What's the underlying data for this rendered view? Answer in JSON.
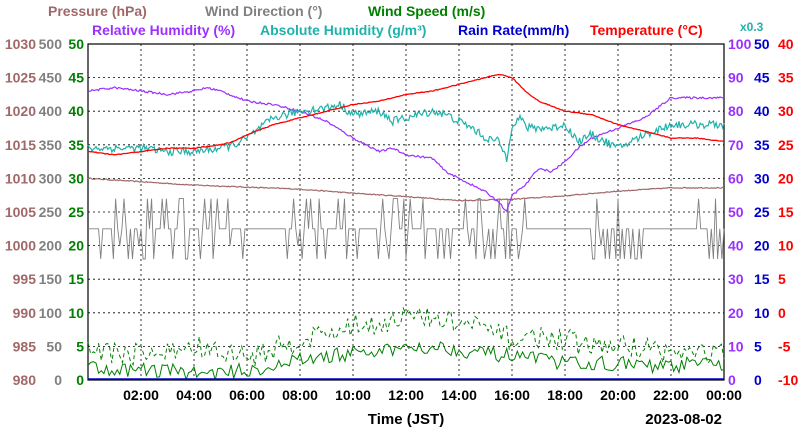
{
  "chart_data": {
    "type": "line",
    "date": "2023-08-02",
    "xlabel": "Time (JST)",
    "x_ticks": [
      "02:00",
      "04:00",
      "06:00",
      "08:00",
      "10:00",
      "12:00",
      "14:00",
      "16:00",
      "18:00",
      "20:00",
      "22:00",
      "00:00"
    ],
    "x_range_hours": [
      0,
      24
    ],
    "grid": true,
    "legend": [
      {
        "id": "pressure",
        "label": "Pressure (hPa)",
        "color": "#a06868"
      },
      {
        "id": "wind_dir",
        "label": "Wind Direction (°)",
        "color": "#808080"
      },
      {
        "id": "wind_speed",
        "label": "Wind Speed (m/s)",
        "color": "#008000"
      },
      {
        "id": "rh",
        "label": "Relative Humidity (%)",
        "color": "#9b30ff"
      },
      {
        "id": "abs_hum",
        "label": "Absolute Humidity (g/m³)",
        "color": "#20b2aa"
      },
      {
        "id": "rain",
        "label": "Rain Rate(mm/h)",
        "color": "#0000cd"
      },
      {
        "id": "temp",
        "label": "Temperature (°C)",
        "color": "#ff0000"
      }
    ],
    "abs_hum_scale_note": "x0.3",
    "axes": {
      "pressure": {
        "range": [
          980,
          1030
        ],
        "ticks": [
          "1030",
          "1025",
          "1020",
          "1015",
          "1010",
          "1005",
          "1000",
          "995",
          "990",
          "985",
          "980"
        ]
      },
      "wind_dir": {
        "range": [
          0,
          500
        ],
        "ticks": [
          "500",
          "450",
          "400",
          "350",
          "300",
          "250",
          "200",
          "150",
          "100",
          "50",
          "0"
        ]
      },
      "wind_speed": {
        "range": [
          0,
          50
        ],
        "ticks": [
          "50",
          "45",
          "40",
          "35",
          "30",
          "25",
          "20",
          "15",
          "10",
          "5",
          "0"
        ]
      },
      "rh": {
        "range": [
          0,
          100
        ],
        "ticks": [
          "100",
          "90",
          "80",
          "70",
          "60",
          "50",
          "40",
          "30",
          "20",
          "10",
          "0"
        ]
      },
      "rain": {
        "range": [
          0,
          50
        ],
        "ticks": [
          "50",
          "45",
          "40",
          "35",
          "30",
          "25",
          "20",
          "15",
          "10",
          "5",
          "0"
        ]
      },
      "temp": {
        "range": [
          -10,
          40
        ],
        "ticks": [
          "40",
          "35",
          "30",
          "25",
          "20",
          "15",
          "10",
          "5",
          "0",
          "-5",
          "-10"
        ]
      }
    },
    "series": {
      "temp": {
        "x": [
          0,
          1,
          2,
          3,
          4,
          5,
          5.5,
          6,
          7,
          8,
          9,
          10,
          11,
          12,
          13,
          14,
          15,
          15.5,
          16,
          16.5,
          17,
          18,
          19,
          20,
          21,
          22,
          23,
          24
        ],
        "y": [
          24,
          23.5,
          24,
          24.5,
          24.5,
          25,
          25.5,
          26.5,
          28,
          29,
          30,
          31,
          31.5,
          32.5,
          33,
          34,
          35,
          35.5,
          35,
          33,
          31.5,
          30,
          29.5,
          28,
          27,
          26,
          26,
          25.5
        ]
      },
      "abs_hum": {
        "x": [
          0,
          1,
          2,
          3,
          4,
          5,
          5.5,
          6,
          7,
          8,
          9,
          9.5,
          10,
          11,
          11.5,
          12,
          12.5,
          13,
          13.5,
          14,
          14.5,
          15,
          15.5,
          15.8,
          16,
          16.3,
          16.6,
          17,
          17.5,
          18,
          18.5,
          19,
          19.5,
          20,
          20.5,
          21,
          22,
          23,
          24
        ],
        "y": [
          69,
          69,
          69,
          68,
          68,
          69,
          70,
          72,
          78,
          80,
          81,
          82,
          79,
          80,
          77,
          78,
          79,
          80,
          79,
          77,
          75,
          72,
          71,
          66,
          76,
          78,
          75,
          75,
          75,
          76,
          71,
          73,
          71,
          69,
          71,
          73,
          76,
          76,
          76
        ],
        "noise": 1.2
      },
      "rh": {
        "x": [
          0,
          1,
          2,
          3,
          4,
          4.5,
          5,
          6,
          7,
          8,
          9,
          10,
          11,
          11.5,
          12,
          13,
          13.5,
          14,
          14.5,
          15,
          15.5,
          15.8,
          16,
          16.5,
          17,
          17.5,
          18,
          18.5,
          19,
          20,
          21,
          22,
          23,
          24
        ],
        "y": [
          86,
          87,
          86,
          85,
          86,
          87,
          86,
          83,
          82,
          80,
          77,
          72,
          68,
          69,
          67,
          66,
          62,
          60,
          58,
          56,
          53,
          50,
          55,
          58,
          63,
          62,
          65,
          69,
          72,
          75,
          78,
          84,
          84,
          84
        ]
      },
      "pressure": {
        "x": [
          0,
          2,
          4,
          6,
          8,
          10,
          12,
          14,
          16,
          18,
          20,
          22,
          24
        ],
        "y": [
          1010,
          1009.5,
          1009,
          1008.7,
          1008.4,
          1007.8,
          1007.3,
          1006.7,
          1006.9,
          1007.4,
          1008.1,
          1008.6,
          1008.6
        ]
      },
      "wind_dir": {
        "base": 225,
        "low": 180,
        "high": 270,
        "busy_ranges": [
          [
            0,
            6
          ],
          [
            7.5,
            16.5
          ],
          [
            19,
            21
          ],
          [
            23,
            24
          ]
        ]
      },
      "wind_speed": {
        "x": [
          0,
          1,
          2,
          3,
          4,
          5,
          6,
          7,
          8,
          9,
          10,
          11,
          12,
          13,
          14,
          15,
          16,
          17,
          18,
          19,
          20,
          21,
          22,
          23,
          24
        ],
        "mean": [
          2,
          1.5,
          1.5,
          1.5,
          1,
          1,
          1.5,
          2,
          3,
          3.5,
          4,
          4,
          5,
          5,
          4.5,
          4,
          3.5,
          3,
          2.5,
          2.5,
          2.5,
          2,
          2,
          2.5,
          2
        ],
        "gust": [
          5,
          4,
          4,
          4,
          5,
          4,
          3.5,
          4.5,
          6,
          7,
          8,
          8.5,
          9.5,
          9,
          8.5,
          7.5,
          6,
          6.5,
          6,
          5,
          5,
          5,
          4,
          4,
          4
        ]
      },
      "rain": {
        "x": [
          0,
          24
        ],
        "y": [
          0,
          0
        ]
      }
    }
  }
}
